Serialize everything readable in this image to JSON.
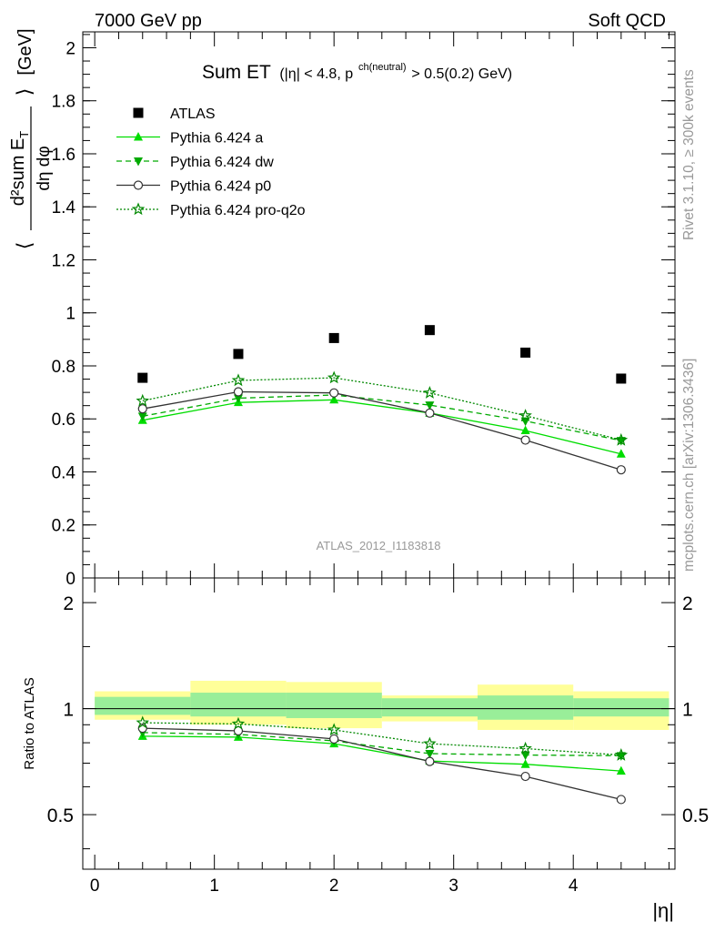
{
  "header": {
    "left": "7000 GeV pp",
    "right": "Soft QCD"
  },
  "side": {
    "rivet": "Rivet 3.1.10, ≥ 300k events",
    "mcplots": "mcplots.cern.ch [arXiv:1306.3436]"
  },
  "chart_data": [
    {
      "type": "scatter",
      "title_main": "Sum ET",
      "title_cut": "(|η| < 4.8, p",
      "title_sup": "ch(neutral)",
      "title_tail": " > 0.5(0.2) GeV)",
      "ylabel": "⟨ d²sum E_T / dη dφ ⟩ [GeV]",
      "ylabel_parts": {
        "open": "⟨",
        "num": "d²sum E",
        "num_sub": "T",
        "den": "dη dφ",
        "close": "⟩",
        "unit": "[GeV]"
      },
      "watermark": "ATLAS_2012_I1183818",
      "xlim": [
        -0.1,
        4.85
      ],
      "ylim": [
        0,
        2.06
      ],
      "yticks": [
        0,
        0.2,
        0.4,
        0.6,
        0.8,
        1,
        1.2,
        1.4,
        1.6,
        1.8,
        2
      ],
      "ytick_labels": [
        "0",
        "0.2",
        "0.4",
        "0.6",
        "0.8",
        "1",
        "1.2",
        "1.4",
        "1.6",
        "1.8",
        "2"
      ],
      "x": [
        0.4,
        1.2,
        2.0,
        2.8,
        3.6,
        4.4
      ],
      "series": [
        {
          "name": "ATLAS",
          "values": [
            0.755,
            0.845,
            0.905,
            0.935,
            0.85,
            0.752
          ],
          "color": "#000000",
          "marker": "square",
          "line": "none"
        },
        {
          "name": "Pythia 6.424 a",
          "values": [
            0.595,
            0.662,
            0.672,
            0.622,
            0.556,
            0.468
          ],
          "color": "#00dd00",
          "marker": "triangle-up",
          "line": "solid"
        },
        {
          "name": "Pythia 6.424 dw",
          "values": [
            0.61,
            0.678,
            0.69,
            0.652,
            0.592,
            0.518
          ],
          "color": "#00aa00",
          "marker": "triangle-down",
          "line": "dashed"
        },
        {
          "name": "Pythia 6.424 p0",
          "values": [
            0.638,
            0.702,
            0.698,
            0.622,
            0.52,
            0.408
          ],
          "color": "#333333",
          "marker": "circle-open",
          "line": "solid"
        },
        {
          "name": "Pythia 6.424 pro-q2o",
          "values": [
            0.668,
            0.745,
            0.755,
            0.698,
            0.612,
            0.52
          ],
          "color": "#008800",
          "marker": "star-open",
          "line": "dotted"
        }
      ]
    },
    {
      "type": "scatter",
      "ylabel": "Ratio to ATLAS",
      "xlabel": "|η|",
      "xlim": [
        -0.1,
        4.85
      ],
      "ylim": [
        0.35,
        2.35
      ],
      "xticks": [
        0,
        1,
        2,
        3,
        4
      ],
      "xtick_labels": [
        "0",
        "1",
        "2",
        "3",
        "4"
      ],
      "yticks": [
        0.5,
        1,
        2
      ],
      "ytick_labels": [
        "0.5",
        "1",
        "2"
      ],
      "x": [
        0.4,
        1.2,
        2.0,
        2.8,
        3.6,
        4.4
      ],
      "bin_edges": [
        0,
        0.8,
        1.6,
        2.4,
        3.2,
        4.0,
        4.8
      ],
      "band_total": [
        [
          0.93,
          1.12
        ],
        [
          0.9,
          1.2
        ],
        [
          0.88,
          1.19
        ],
        [
          0.92,
          1.09
        ],
        [
          0.87,
          1.17
        ],
        [
          0.87,
          1.12
        ]
      ],
      "band_stat": [
        [
          0.96,
          1.08
        ],
        [
          0.95,
          1.11
        ],
        [
          0.94,
          1.11
        ],
        [
          0.95,
          1.07
        ],
        [
          0.93,
          1.09
        ],
        [
          0.95,
          1.07
        ]
      ],
      "series": [
        {
          "name": "Pythia 6.424 a",
          "values": [
            0.835,
            0.83,
            0.795,
            0.71,
            0.695,
            0.665
          ]
        },
        {
          "name": "Pythia 6.424 dw",
          "values": [
            0.855,
            0.845,
            0.81,
            0.745,
            0.738,
            0.735
          ]
        },
        {
          "name": "Pythia 6.424 p0",
          "values": [
            0.88,
            0.865,
            0.82,
            0.708,
            0.642,
            0.552
          ]
        },
        {
          "name": "Pythia 6.424 pro-q2o",
          "values": [
            0.912,
            0.905,
            0.87,
            0.795,
            0.77,
            0.738
          ]
        }
      ]
    }
  ]
}
